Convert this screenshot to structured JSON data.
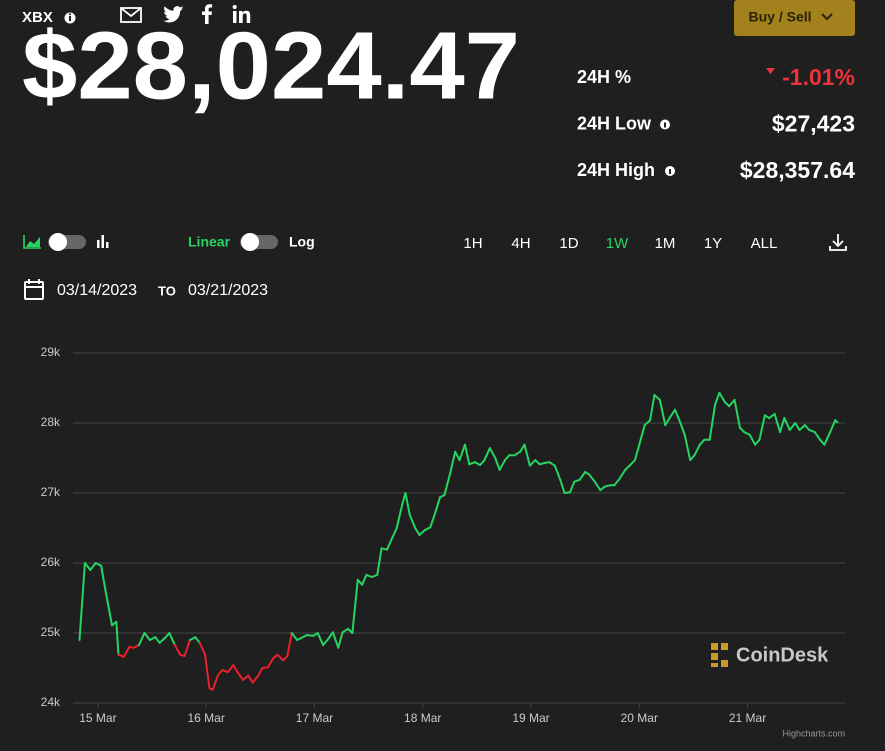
{
  "header": {
    "ticker": "XBX",
    "price": "$28,024.47",
    "button": "Buy / Sell"
  },
  "stats": [
    {
      "label": "24H %",
      "value": "-1.01%"
    },
    {
      "label": "24H Low",
      "value": "$27,423"
    },
    {
      "label": "24H High",
      "value": "$28,357.64"
    }
  ],
  "controls": {
    "linear": "Linear",
    "log": "Log",
    "ranges": [
      "1H",
      "4H",
      "1D",
      "1W",
      "1M",
      "1Y",
      "ALL"
    ],
    "active_range": "1W"
  },
  "date_range": {
    "from": "03/14/2023",
    "to_word": "TO",
    "to": "03/21/2023"
  },
  "watermark": "CoinDesk",
  "credit": "Highcharts.com",
  "chart_data": {
    "type": "line",
    "x": [
      14.83,
      14.88,
      14.93,
      14.98,
      15.03,
      15.07,
      15.13,
      15.17,
      15.19,
      15.24,
      15.29,
      15.33,
      15.38,
      15.43,
      15.48,
      15.53,
      15.57,
      15.62,
      15.66,
      15.71,
      15.76,
      15.8,
      15.85,
      15.9,
      15.94,
      15.99,
      16.03,
      16.06,
      16.11,
      16.15,
      16.2,
      16.25,
      16.29,
      16.34,
      16.39,
      16.43,
      16.48,
      16.52,
      16.57,
      16.62,
      16.66,
      16.71,
      16.75,
      16.79,
      16.84,
      16.88,
      16.93,
      16.99,
      17.03,
      17.08,
      17.12,
      17.17,
      17.22,
      17.26,
      17.31,
      17.35,
      17.4,
      17.44,
      17.48,
      17.53,
      17.58,
      17.62,
      17.67,
      17.71,
      17.76,
      17.81,
      17.84,
      17.88,
      17.93,
      17.97,
      18.02,
      18.07,
      18.11,
      18.16,
      18.2,
      18.25,
      18.3,
      18.34,
      18.39,
      18.43,
      18.48,
      18.53,
      18.57,
      18.62,
      18.67,
      18.71,
      18.76,
      18.8,
      18.85,
      18.9,
      18.94,
      18.99,
      19.04,
      19.08,
      19.13,
      19.17,
      19.22,
      19.27,
      19.31,
      19.36,
      19.4,
      19.45,
      19.5,
      19.54,
      19.59,
      19.64,
      19.68,
      19.73,
      19.77,
      19.82,
      19.87,
      19.91,
      19.96,
      20.0,
      20.05,
      20.1,
      20.14,
      20.19,
      20.24,
      20.28,
      20.33,
      20.37,
      20.42,
      20.47,
      20.51,
      20.56,
      20.6,
      20.65,
      20.7,
      20.74,
      20.79,
      20.83,
      20.88,
      20.93,
      20.97,
      21.02,
      21.07,
      21.11,
      21.16,
      21.2,
      21.25,
      21.3,
      21.34,
      21.39,
      21.44,
      21.48,
      21.53,
      21.57,
      21.62,
      21.67,
      21.71,
      21.76,
      21.81,
      21.83
    ],
    "series": [
      {
        "name": "XBX",
        "color": "#27d462",
        "values": [
          24900,
          26000,
          25900,
          26000,
          25960,
          25610,
          25110,
          25160,
          24690,
          24660,
          24800,
          24790,
          24830,
          25000,
          24900,
          24940,
          24860,
          24930,
          25000,
          24830,
          24690,
          24670,
          24900,
          24940,
          24860,
          24690,
          24210,
          24190,
          24400,
          24470,
          24440,
          24540,
          24440,
          24330,
          24390,
          24290,
          24390,
          24500,
          24510,
          24640,
          24690,
          24610,
          24670,
          25000,
          24900,
          24930,
          24970,
          24960,
          25000,
          24830,
          24900,
          25010,
          24790,
          25010,
          25060,
          25000,
          25760,
          25690,
          25830,
          25800,
          25830,
          26210,
          26190,
          26330,
          26500,
          26830,
          27000,
          26690,
          26500,
          26400,
          26470,
          26510,
          26690,
          26940,
          26970,
          27260,
          27590,
          27470,
          27690,
          27410,
          27440,
          27400,
          27470,
          27640,
          27500,
          27330,
          27470,
          27540,
          27540,
          27590,
          27690,
          27390,
          27470,
          27410,
          27430,
          27440,
          27390,
          27190,
          27000,
          27010,
          27160,
          27190,
          27300,
          27260,
          27160,
          27040,
          27090,
          27110,
          27110,
          27210,
          27330,
          27390,
          27470,
          27690,
          27970,
          28040,
          28400,
          28330,
          27970,
          28070,
          28190,
          28040,
          27830,
          27470,
          27540,
          27690,
          27760,
          27760,
          28260,
          28430,
          28300,
          28240,
          28330,
          27930,
          27870,
          27830,
          27690,
          27760,
          28110,
          28070,
          28130,
          27870,
          28070,
          27900,
          28000,
          27900,
          27970,
          27900,
          27870,
          27760,
          27690,
          27860,
          28040,
          28010
        ]
      }
    ],
    "zone_threshold": 24850,
    "below_color": "#e8212b",
    "xlim": [
      14.77,
      21.9
    ],
    "xticks": [
      {
        "value": 15,
        "label": "15 Mar"
      },
      {
        "value": 16,
        "label": "16 Mar"
      },
      {
        "value": 17,
        "label": "17 Mar"
      },
      {
        "value": 18,
        "label": "18 Mar"
      },
      {
        "value": 19,
        "label": "19 Mar"
      },
      {
        "value": 20,
        "label": "20 Mar"
      },
      {
        "value": 21,
        "label": "21 Mar"
      }
    ],
    "ylim": [
      24000,
      29000
    ],
    "yticks": [
      {
        "value": 24000,
        "label": "24k"
      },
      {
        "value": 25000,
        "label": "25k"
      },
      {
        "value": 26000,
        "label": "26k"
      },
      {
        "value": 27000,
        "label": "27k"
      },
      {
        "value": 28000,
        "label": "28k"
      },
      {
        "value": 29000,
        "label": "29k"
      }
    ],
    "grid": true
  }
}
